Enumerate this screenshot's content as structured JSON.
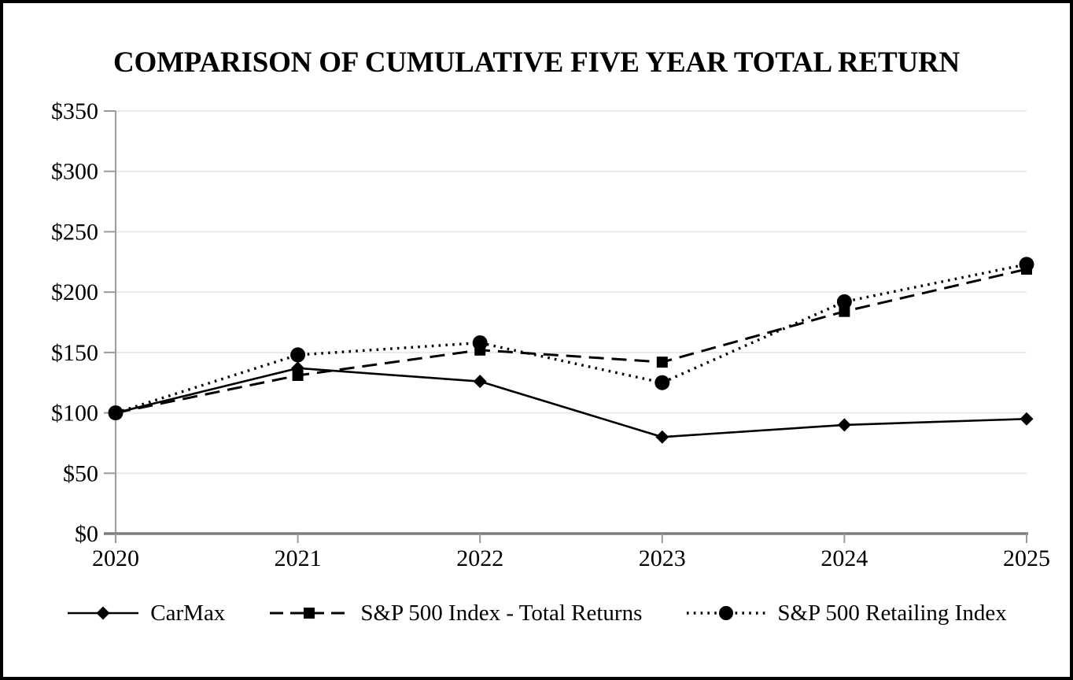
{
  "chart_data": {
    "type": "line",
    "title": "COMPARISON OF CUMULATIVE FIVE YEAR TOTAL RETURN",
    "x_categories": [
      "2020",
      "2021",
      "2022",
      "2023",
      "2024",
      "2025"
    ],
    "ylim": [
      0,
      350
    ],
    "y_ticks": [
      {
        "value": 0,
        "label": "$0"
      },
      {
        "value": 50,
        "label": "$50"
      },
      {
        "value": 100,
        "label": "$100"
      },
      {
        "value": 150,
        "label": "$150"
      },
      {
        "value": 200,
        "label": "$200"
      },
      {
        "value": 250,
        "label": "$250"
      },
      {
        "value": 300,
        "label": "$300"
      },
      {
        "value": 350,
        "label": "$350"
      }
    ],
    "grid": "horizontal",
    "legend_position": "bottom",
    "colors": {
      "foreground": "#000000",
      "gridline": "#eaeaea",
      "axis": "#7d7d7d"
    },
    "series": [
      {
        "name": "CarMax",
        "marker": "diamond",
        "line_style": "solid",
        "color": "#000000",
        "values": [
          100,
          137,
          126,
          80,
          90,
          95
        ]
      },
      {
        "name": "S&P 500 Index - Total Returns",
        "marker": "square",
        "line_style": "dashed",
        "color": "#000000",
        "values": [
          100,
          131,
          152,
          142,
          184,
          219
        ]
      },
      {
        "name": "S&P 500 Retailing Index",
        "marker": "circle",
        "line_style": "dotted",
        "color": "#000000",
        "values": [
          100,
          148,
          158,
          125,
          192,
          223
        ]
      }
    ]
  }
}
